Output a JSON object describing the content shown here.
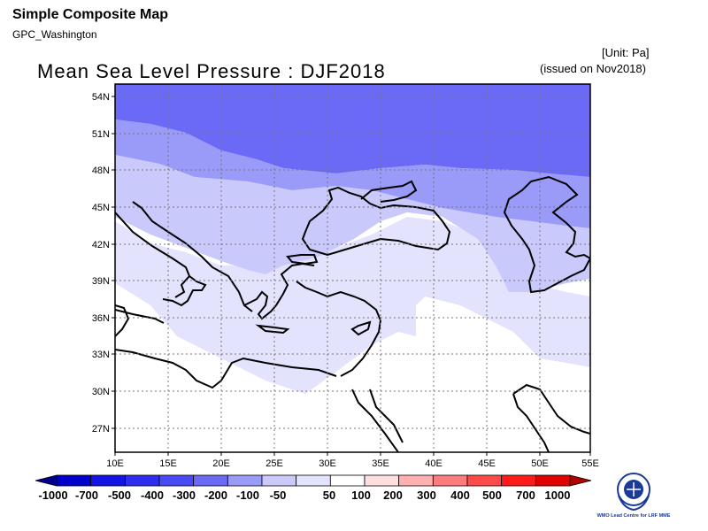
{
  "header": {
    "product": "Simple Composite Map",
    "source": "GPC_Washington",
    "unit": "[Unit: Pa]",
    "issued": "(issued on Nov2018)"
  },
  "map": {
    "title": "Mean Sea Level Pressure : DJF2018",
    "lon_range": [
      10,
      55
    ],
    "lat_range": [
      25,
      55
    ],
    "x_ticks": [
      "10E",
      "15E",
      "20E",
      "25E",
      "30E",
      "35E",
      "40E",
      "45E",
      "50E",
      "55E"
    ],
    "y_ticks": [
      "54N",
      "51N",
      "48N",
      "45N",
      "42N",
      "39N",
      "36N",
      "33N",
      "30N",
      "27N"
    ],
    "gridlines": true
  },
  "colorbar": {
    "labels": [
      "-1000",
      "-700",
      "-500",
      "-400",
      "-300",
      "-200",
      "-100",
      "-50",
      "50",
      "100",
      "200",
      "300",
      "400",
      "500",
      "700",
      "1000"
    ],
    "colors": [
      "#00008b",
      "#0000cd",
      "#1414e6",
      "#2e2ef0",
      "#4a4af5",
      "#6a6af7",
      "#9a9af8",
      "#c9c9fb",
      "#e3e3fd",
      "#ffffff",
      "#ffdede",
      "#ffb0b0",
      "#ff7c7c",
      "#ff4a4a",
      "#ff1a1a",
      "#e00000",
      "#b00000"
    ]
  },
  "logo": {
    "text": "WMO Lead Centre for LRF MME"
  }
}
